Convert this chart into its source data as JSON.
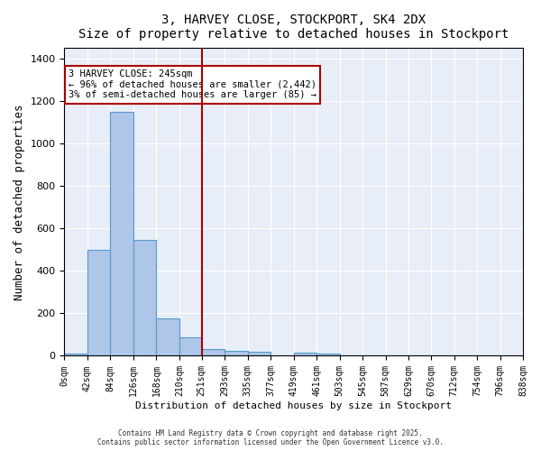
{
  "title1": "3, HARVEY CLOSE, STOCKPORT, SK4 2DX",
  "title2": "Size of property relative to detached houses in Stockport",
  "xlabel": "Distribution of detached houses by size in Stockport",
  "ylabel": "Number of detached properties",
  "bar_edges": [
    0,
    42,
    84,
    126,
    168,
    210,
    251,
    293,
    335,
    377,
    419,
    461,
    503,
    545,
    587,
    629,
    670,
    712,
    754,
    796,
    838
  ],
  "bar_heights": [
    10,
    500,
    1150,
    545,
    175,
    88,
    30,
    25,
    20,
    0,
    15,
    10,
    0,
    0,
    0,
    0,
    0,
    0,
    0,
    0
  ],
  "bar_color": "#aec6e8",
  "bar_edgecolor": "#5599cc",
  "vline_x": 251,
  "vline_color": "#aa0000",
  "annotation_text": "3 HARVEY CLOSE: 245sqm\n← 96% of detached houses are smaller (2,442)\n3% of semi-detached houses are larger (85) →",
  "annotation_box_color": "#aa0000",
  "annotation_fill": "white",
  "ylim": [
    0,
    1450
  ],
  "xlim": [
    0,
    838
  ],
  "background_color": "#e8eef8",
  "grid_color": "white",
  "tick_labels": [
    "0sqm",
    "42sqm",
    "84sqm",
    "126sqm",
    "168sqm",
    "210sqm",
    "251sqm",
    "293sqm",
    "335sqm",
    "377sqm",
    "419sqm",
    "461sqm",
    "503sqm",
    "545sqm",
    "587sqm",
    "629sqm",
    "670sqm",
    "712sqm",
    "754sqm",
    "796sqm",
    "838sqm"
  ],
  "footer1": "Contains HM Land Registry data © Crown copyright and database right 2025.",
  "footer2": "Contains public sector information licensed under the Open Government Licence v3.0."
}
